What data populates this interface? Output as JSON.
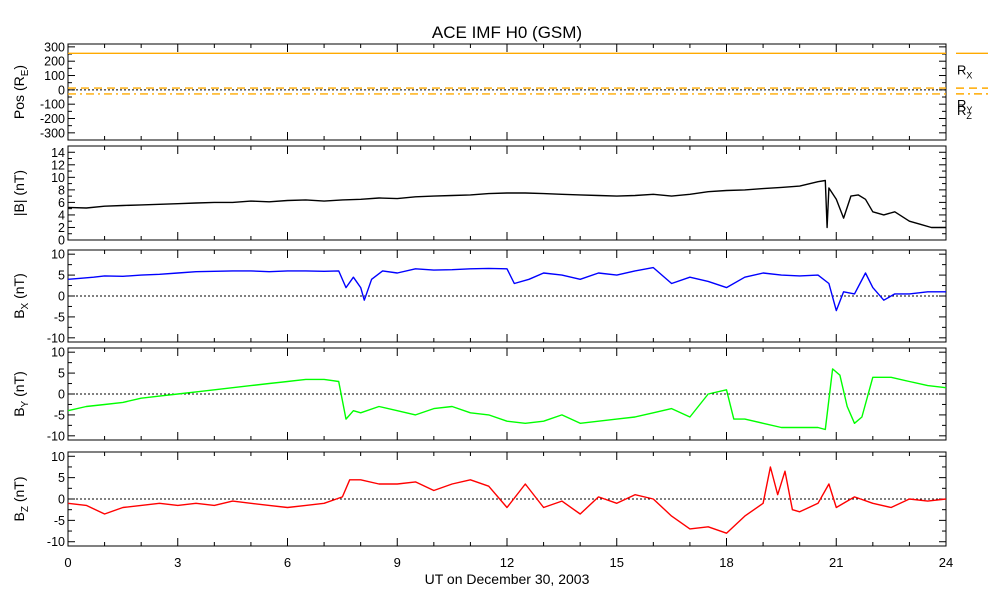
{
  "title": "ACE IMF H0 (GSM)",
  "xlabel": "UT on December 30, 2003",
  "x_ticks": [
    "0",
    "3",
    "6",
    "9",
    "12",
    "15",
    "18",
    "21",
    "24"
  ],
  "colors": {
    "position": "#ffaa00",
    "btotal": "#000000",
    "bx": "#0000ff",
    "by": "#00ff00",
    "bz": "#ff0000"
  },
  "chart_data": {
    "type": "line",
    "xlim": [
      0,
      24
    ],
    "panels": [
      {
        "ylabel": {
          "main": "Pos (R",
          "sub": "E",
          "tail": ")"
        },
        "ylim": [
          -350,
          320
        ],
        "y_ticks": [
          300,
          200,
          100,
          0,
          -100,
          -200,
          -300
        ],
        "y_tick_labels": [
          "300",
          "200",
          "100",
          "0",
          "-100",
          "-200",
          "-300"
        ],
        "zero_line": true,
        "series": [
          {
            "name": "RX",
            "label_main": "R",
            "label_sub": "X",
            "style": "solid",
            "x": [
              0,
              24
            ],
            "y": [
              255,
              255
            ]
          },
          {
            "name": "RY",
            "label_main": "R",
            "label_sub": "Y",
            "style": "dashed",
            "x": [
              0,
              24
            ],
            "y": [
              12,
              12
            ]
          },
          {
            "name": "RZ",
            "label_main": "R",
            "label_sub": "Z",
            "style": "dashdot",
            "x": [
              0,
              24
            ],
            "y": [
              -28,
              -28
            ]
          }
        ]
      },
      {
        "ylabel": {
          "main": "|B| (nT)",
          "sub": "",
          "tail": ""
        },
        "ylim": [
          0,
          15
        ],
        "y_ticks": [
          14,
          12,
          10,
          8,
          6,
          4,
          2,
          0
        ],
        "y_tick_labels": [
          "14",
          "12",
          "10",
          "8",
          "6",
          "4",
          "2",
          "0"
        ],
        "zero_line": false,
        "series": [
          {
            "x": [
              0,
              0.5,
              1,
              1.5,
              2,
              2.5,
              3,
              3.5,
              4,
              4.5,
              5,
              5.5,
              6,
              6.5,
              7,
              7.5,
              8,
              8.5,
              9,
              9.5,
              10,
              10.5,
              11,
              11.5,
              12,
              12.5,
              13,
              13.5,
              14,
              14.5,
              15,
              15.5,
              16,
              16.5,
              17,
              17.5,
              18,
              18.5,
              19,
              19.5,
              20,
              20.5,
              20.7,
              20.75,
              20.8,
              21,
              21.2,
              21.4,
              21.6,
              21.8,
              22,
              22.3,
              22.6,
              23,
              23.3,
              23.6,
              24
            ],
            "y": [
              5.2,
              5.1,
              5.4,
              5.5,
              5.6,
              5.7,
              5.8,
              5.9,
              6.0,
              6.0,
              6.2,
              6.1,
              6.3,
              6.4,
              6.2,
              6.4,
              6.5,
              6.7,
              6.6,
              6.9,
              7.0,
              7.1,
              7.2,
              7.4,
              7.5,
              7.5,
              7.4,
              7.3,
              7.2,
              7.1,
              7.0,
              7.1,
              7.3,
              7.0,
              7.3,
              7.7,
              7.9,
              8.0,
              8.2,
              8.4,
              8.6,
              9.3,
              9.5,
              2.0,
              8.3,
              6.5,
              3.5,
              7.0,
              7.2,
              6.5,
              4.5,
              4.0,
              4.5,
              3.0,
              2.5,
              2.0,
              2.0
            ]
          }
        ]
      },
      {
        "ylabel": {
          "main": "B",
          "sub": "X",
          "tail": " (nT)"
        },
        "ylim": [
          -11,
          11
        ],
        "y_ticks": [
          10,
          5,
          0,
          -5,
          -10
        ],
        "y_tick_labels": [
          "10",
          "5",
          "0",
          "-5",
          "-10"
        ],
        "zero_line": true,
        "series": [
          {
            "x": [
              0,
              0.3,
              0.7,
              1,
              1.5,
              2,
              2.5,
              3,
              3.5,
              4,
              4.5,
              5,
              5.5,
              6,
              6.5,
              7,
              7.4,
              7.6,
              7.8,
              8,
              8.1,
              8.3,
              8.6,
              9,
              9.5,
              10,
              10.5,
              11,
              11.5,
              12,
              12.2,
              12.6,
              13,
              13.5,
              14,
              14.5,
              15,
              15.5,
              16,
              16.5,
              17,
              17.5,
              18,
              18.5,
              19,
              19.5,
              20,
              20.5,
              20.8,
              21,
              21.2,
              21.5,
              21.8,
              22,
              22.3,
              22.6,
              23,
              23.5,
              24
            ],
            "y": [
              4.0,
              4.2,
              4.5,
              4.8,
              4.7,
              5.0,
              5.2,
              5.5,
              5.8,
              5.9,
              6.0,
              6.0,
              5.8,
              6.0,
              6.0,
              5.9,
              6.0,
              2.0,
              4.5,
              2.0,
              -1.0,
              4.0,
              6.0,
              5.5,
              6.5,
              6.2,
              6.3,
              6.5,
              6.6,
              6.5,
              3.0,
              4.0,
              5.5,
              5.0,
              4.0,
              5.5,
              5.0,
              6.0,
              6.8,
              3.0,
              4.5,
              3.5,
              2.0,
              4.5,
              5.5,
              5.0,
              4.8,
              5.0,
              3.0,
              -3.5,
              1.0,
              0.5,
              5.5,
              2.0,
              -1.0,
              0.5,
              0.5,
              1.0,
              1.0
            ]
          }
        ]
      },
      {
        "ylabel": {
          "main": "B",
          "sub": "Y",
          "tail": " (nT)"
        },
        "ylim": [
          -11,
          11
        ],
        "y_ticks": [
          10,
          5,
          0,
          -5,
          -10
        ],
        "y_tick_labels": [
          "10",
          "5",
          "0",
          "-5",
          "-10"
        ],
        "zero_line": true,
        "series": [
          {
            "x": [
              0,
              0.5,
              1,
              1.5,
              2,
              2.5,
              3,
              3.5,
              4,
              4.5,
              5,
              5.5,
              6,
              6.5,
              7,
              7.4,
              7.6,
              7.8,
              8,
              8.5,
              9,
              9.5,
              10,
              10.5,
              11,
              11.5,
              12,
              12.5,
              13,
              13.5,
              14,
              14.5,
              15,
              15.5,
              16,
              16.5,
              17,
              17.5,
              18,
              18.2,
              18.5,
              19,
              19.5,
              20,
              20.5,
              20.7,
              20.9,
              21.1,
              21.3,
              21.5,
              21.7,
              22,
              22.5,
              23,
              23.5,
              24
            ],
            "y": [
              -4.0,
              -3.0,
              -2.5,
              -2.0,
              -1.0,
              -0.5,
              0.0,
              0.5,
              1.0,
              1.5,
              2.0,
              2.5,
              3.0,
              3.5,
              3.5,
              3.0,
              -6.0,
              -4.0,
              -4.5,
              -3.0,
              -4.0,
              -5.0,
              -3.5,
              -3.0,
              -4.5,
              -5.0,
              -6.5,
              -7.0,
              -6.5,
              -5.0,
              -7.0,
              -6.5,
              -6.0,
              -5.5,
              -4.5,
              -3.5,
              -5.5,
              0.0,
              1.0,
              -6.0,
              -6.0,
              -7.0,
              -8.0,
              -8.0,
              -8.0,
              -8.5,
              6.0,
              4.5,
              -3.0,
              -7.0,
              -5.5,
              4.0,
              4.0,
              3.0,
              2.0,
              1.5
            ]
          }
        ]
      },
      {
        "ylabel": {
          "main": "B",
          "sub": "Z",
          "tail": " (nT)"
        },
        "ylim": [
          -11,
          11
        ],
        "y_ticks": [
          10,
          5,
          0,
          -5,
          -10
        ],
        "y_tick_labels": [
          "10",
          "5",
          "0",
          "-5",
          "-10"
        ],
        "zero_line": true,
        "series": [
          {
            "x": [
              0,
              0.5,
              1,
              1.5,
              2,
              2.5,
              3,
              3.5,
              4,
              4.5,
              5,
              5.5,
              6,
              6.5,
              7,
              7.5,
              7.7,
              8,
              8.5,
              9,
              9.5,
              10,
              10.5,
              11,
              11.5,
              12,
              12.5,
              13,
              13.5,
              14,
              14.5,
              15,
              15.5,
              16,
              16.5,
              17,
              17.5,
              18,
              18.5,
              19,
              19.2,
              19.4,
              19.6,
              19.8,
              20,
              20.5,
              20.8,
              21,
              21.5,
              22,
              22.5,
              23,
              23.5,
              24
            ],
            "y": [
              -1.0,
              -1.5,
              -3.5,
              -2.0,
              -1.5,
              -1.0,
              -1.5,
              -1.0,
              -1.5,
              -0.5,
              -1.0,
              -1.5,
              -2.0,
              -1.5,
              -1.0,
              0.5,
              4.5,
              4.5,
              3.5,
              3.5,
              4.0,
              2.0,
              3.5,
              4.5,
              3.0,
              -2.0,
              3.5,
              -2.0,
              -0.5,
              -3.5,
              0.5,
              -1.0,
              1.0,
              0.0,
              -4.0,
              -7.0,
              -6.5,
              -8.0,
              -4.0,
              -1.0,
              7.5,
              1.0,
              6.5,
              -2.5,
              -3.0,
              -1.0,
              3.5,
              -2.0,
              0.5,
              -1.0,
              -2.0,
              0.0,
              -0.5,
              0.0
            ]
          }
        ]
      }
    ]
  }
}
